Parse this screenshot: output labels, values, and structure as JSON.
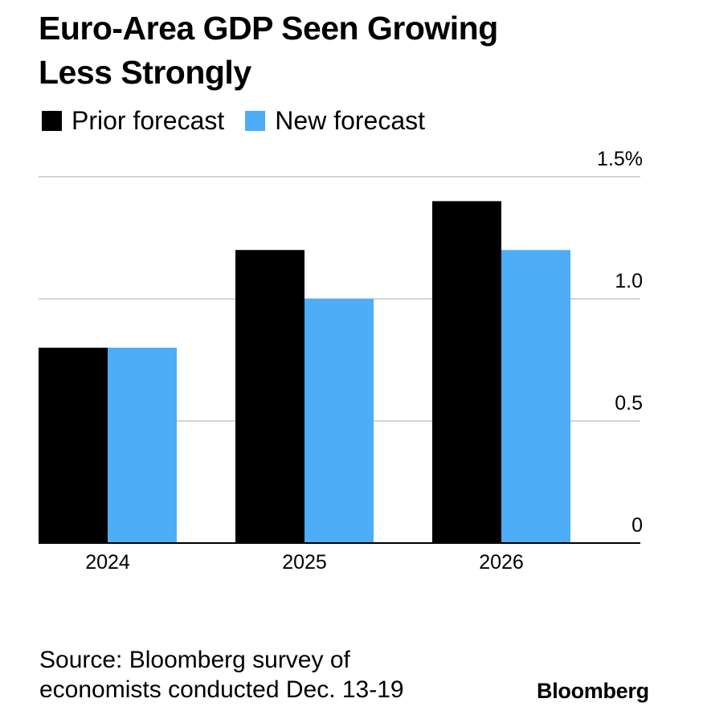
{
  "title_line1": "Euro-Area GDP Seen Growing",
  "title_line2": "Less Strongly",
  "legend": [
    {
      "label": "Prior forecast",
      "color": "#000000"
    },
    {
      "label": "New forecast",
      "color": "#4dadf7"
    }
  ],
  "source_line1": "Source: Bloomberg survey of",
  "source_line2": "economists conducted Dec. 13-19",
  "logo": "Bloomberg",
  "chart_data": {
    "type": "bar",
    "categories": [
      "2024",
      "2025",
      "2026"
    ],
    "series": [
      {
        "name": "Prior forecast",
        "color": "#000000",
        "values": [
          0.8,
          1.2,
          1.4
        ]
      },
      {
        "name": "New forecast",
        "color": "#4dadf7",
        "values": [
          0.8,
          1.0,
          1.2
        ]
      }
    ],
    "ylim": [
      0,
      1.5
    ],
    "yticks": [
      {
        "value": 0,
        "label": "0"
      },
      {
        "value": 0.5,
        "label": "0.5"
      },
      {
        "value": 1.0,
        "label": "1.0"
      },
      {
        "value": 1.5,
        "label": "1.5%"
      }
    ],
    "grid": true,
    "y_axis_position": "right",
    "legend_position": "top-left"
  }
}
